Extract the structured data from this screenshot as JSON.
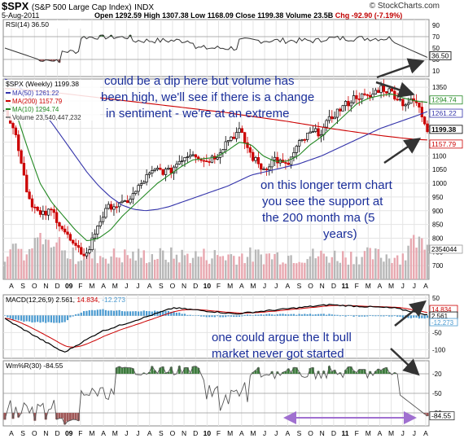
{
  "header": {
    "symbol": "$SPX",
    "name": "(S&P 500 Large Cap Index)",
    "exchange": "INDX",
    "date": "5-Aug-2011",
    "open_label": "Open",
    "open": "1292.59",
    "high_label": "High",
    "high": "1307.38",
    "low_label": "Low",
    "low": "1168.09",
    "close_label": "Close",
    "close": "1199.38",
    "volume_label": "Volume",
    "volume": "23.5B",
    "chg_label": "Chg",
    "chg": "-92.90 (-7.19%)",
    "brand": "© StockCharts.com"
  },
  "colors": {
    "up": "#000000",
    "down": "#cc0000",
    "ma50": "#3333aa",
    "ma200": "#cc0000",
    "ma10": "#228822",
    "volume_up": "#b8b8b8",
    "volume_down": "#e8a8b0",
    "fill_green": "#3c7a3c",
    "fill_red": "#a05858",
    "annotation": "#1a2e9a",
    "arrow": "#333333",
    "purple": "#a070d0",
    "histogram": "#4a9ad0"
  },
  "rsi": {
    "label": "RSI(14) 36.50",
    "value_tag": "36.50",
    "ticks": [
      "90",
      "70",
      "50",
      "30",
      "10"
    ]
  },
  "price": {
    "label": "$SPX (Weekly) 1199.38",
    "legend": [
      "MA(50) 1261.22",
      "MA(200) 1157.79",
      "MA(10) 1294.74",
      "Volume 23,540,447,232"
    ],
    "tags": [
      "1294.74",
      "1261.22",
      "1199.38",
      "1157.79"
    ],
    "volume_tag": "2354044",
    "ticks": [
      "1350",
      "1300",
      "1250",
      "1200",
      "1150",
      "1100",
      "1050",
      "1000",
      "950",
      "900",
      "850",
      "800",
      "750",
      "700"
    ]
  },
  "x_axis": {
    "labels": [
      "A",
      "S",
      "O",
      "N",
      "D",
      "09",
      "F",
      "M",
      "A",
      "M",
      "J",
      "J",
      "A",
      "S",
      "O",
      "N",
      "D",
      "10",
      "F",
      "M",
      "A",
      "M",
      "J",
      "J",
      "A",
      "S",
      "O",
      "N",
      "D",
      "11",
      "F",
      "M",
      "A",
      "M",
      "J",
      "J",
      "A"
    ]
  },
  "macd": {
    "label_main": "MACD(12,26,9) 2.561,",
    "label_signal": " 14.834,",
    "label_hist": " -12.273",
    "tags": [
      "14.834",
      "2.561",
      "-12.273"
    ],
    "ticks": [
      "50",
      "0",
      "-50",
      "-100"
    ]
  },
  "wmr": {
    "label": "Wm%R(30) -84.55",
    "value_tag": "-84.55",
    "ticks": [
      "-20",
      "-50",
      "-80"
    ]
  },
  "annotations": {
    "a1_line1": "could be a dip here but volume has",
    "a1_line2": "been high, we'll see if there is a change",
    "a1_line3": "in sentiment - we're at an extreme",
    "a2_line1": "on this longer term chart",
    "a2_line2": "you see the support at",
    "a2_line3": "the 200 month ma (5",
    "a2_line4": "years)",
    "a3_line1": "one could argue the lt bull",
    "a3_line2": "market never got started"
  },
  "chart_data": {
    "type": "line",
    "x": [
      "2008-08",
      "2008-09",
      "2008-10",
      "2008-11",
      "2008-12",
      "2009-01",
      "2009-02",
      "2009-03",
      "2009-04",
      "2009-05",
      "2009-06",
      "2009-07",
      "2009-08",
      "2009-09",
      "2009-10",
      "2009-11",
      "2009-12",
      "2010-01",
      "2010-02",
      "2010-03",
      "2010-04",
      "2010-05",
      "2010-06",
      "2010-07",
      "2010-08",
      "2010-09",
      "2010-10",
      "2010-11",
      "2010-12",
      "2011-01",
      "2011-02",
      "2011-03",
      "2011-04",
      "2011-05",
      "2011-06",
      "2011-07",
      "2011-08"
    ],
    "series": [
      {
        "name": "$SPX",
        "values": [
          1280,
          1165,
          950,
          880,
          900,
          830,
          760,
          740,
          860,
          920,
          920,
          960,
          1020,
          1050,
          1040,
          1090,
          1115,
          1080,
          1100,
          1160,
          1190,
          1100,
          1050,
          1090,
          1060,
          1140,
          1180,
          1190,
          1250,
          1285,
          1320,
          1310,
          1350,
          1330,
          1290,
          1300,
          1199.38
        ]
      },
      {
        "name": "MA(50)",
        "values": [
          1380,
          1360,
          1320,
          1270,
          1220,
          1160,
          1100,
          1040,
          990,
          950,
          920,
          905,
          900,
          905,
          915,
          930,
          945,
          960,
          975,
          990,
          1010,
          1030,
          1040,
          1050,
          1060,
          1070,
          1085,
          1100,
          1120,
          1140,
          1160,
          1180,
          1200,
          1215,
          1230,
          1245,
          1261.22
        ]
      },
      {
        "name": "MA(200)",
        "values": [
          1345,
          1343,
          1340,
          1336,
          1332,
          1327,
          1322,
          1317,
          1312,
          1307,
          1302,
          1297,
          1292,
          1287,
          1282,
          1277,
          1272,
          1267,
          1262,
          1257,
          1250,
          1244,
          1238,
          1232,
          1226,
          1219,
          1212,
          1205,
          1198,
          1192,
          1186,
          1180,
          1174,
          1169,
          1164,
          1160,
          1157.79
        ]
      },
      {
        "name": "MA(10)",
        "values": [
          1310,
          1250,
          1120,
          1000,
          930,
          880,
          830,
          790,
          800,
          830,
          880,
          920,
          960,
          1000,
          1030,
          1060,
          1085,
          1090,
          1095,
          1120,
          1150,
          1140,
          1100,
          1080,
          1080,
          1100,
          1140,
          1170,
          1210,
          1250,
          1290,
          1310,
          1320,
          1325,
          1310,
          1300,
          1294.74
        ]
      }
    ],
    "ylim": [
      650,
      1380
    ]
  }
}
